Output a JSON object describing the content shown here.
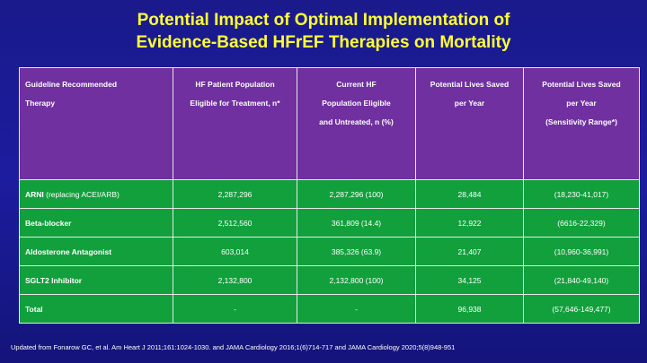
{
  "title": {
    "line1": "Potential Impact of Optimal Implementation of",
    "line2": "Evidence-Based HFrEF Therapies on Mortality"
  },
  "table": {
    "headers": [
      [
        "Guideline Recommended",
        "Therapy"
      ],
      [
        "HF Patient Population",
        "Eligible for Treatment, n*"
      ],
      [
        "Current HF",
        "Population Eligible",
        "and Untreated, n (%)"
      ],
      [
        "Potential Lives Saved",
        "per Year"
      ],
      [
        "Potential Lives Saved",
        "per Year",
        "(Sensitivity Range*)"
      ]
    ],
    "rows": [
      {
        "therapy": "ARNI",
        "therapy_note": " (replacing ACEI/ARB)",
        "eligible": "2,287,296",
        "untreated": "2,287,296 (100)",
        "saved": "28,484",
        "range": "(18,230-41,017)"
      },
      {
        "therapy": "Beta-blocker",
        "therapy_note": "",
        "eligible": "2,512,560",
        "untreated": "361,809 (14.4)",
        "saved": "12,922",
        "range": "(6616-22,329)"
      },
      {
        "therapy": "Aldosterone Antagonist",
        "therapy_note": "",
        "eligible": "603,014",
        "untreated": "385,326 (63.9)",
        "saved": "21,407",
        "range": "(10,960-36,991)"
      },
      {
        "therapy": "SGLT2 Inhibitor",
        "therapy_note": "",
        "eligible": "2,132,800",
        "untreated": "2,132,800 (100)",
        "saved": "34,125",
        "range": "(21,840-49,140)"
      },
      {
        "therapy": "Total",
        "therapy_note": "",
        "eligible": "-",
        "untreated": "-",
        "saved": "96,938",
        "range": "(57,646-149,477)"
      }
    ]
  },
  "footer": "Updated from Fonarow GC, et al. Am Heart J 2011;161:1024-1030.  and JAMA Cardiology 2016;1(6)714-717  and JAMA Cardiology 2020;5(8)948-951",
  "colors": {
    "background": "#1a1a8c",
    "title": "#ffff33",
    "header_fill": "#7030a0",
    "body_fill": "#12a03c"
  }
}
